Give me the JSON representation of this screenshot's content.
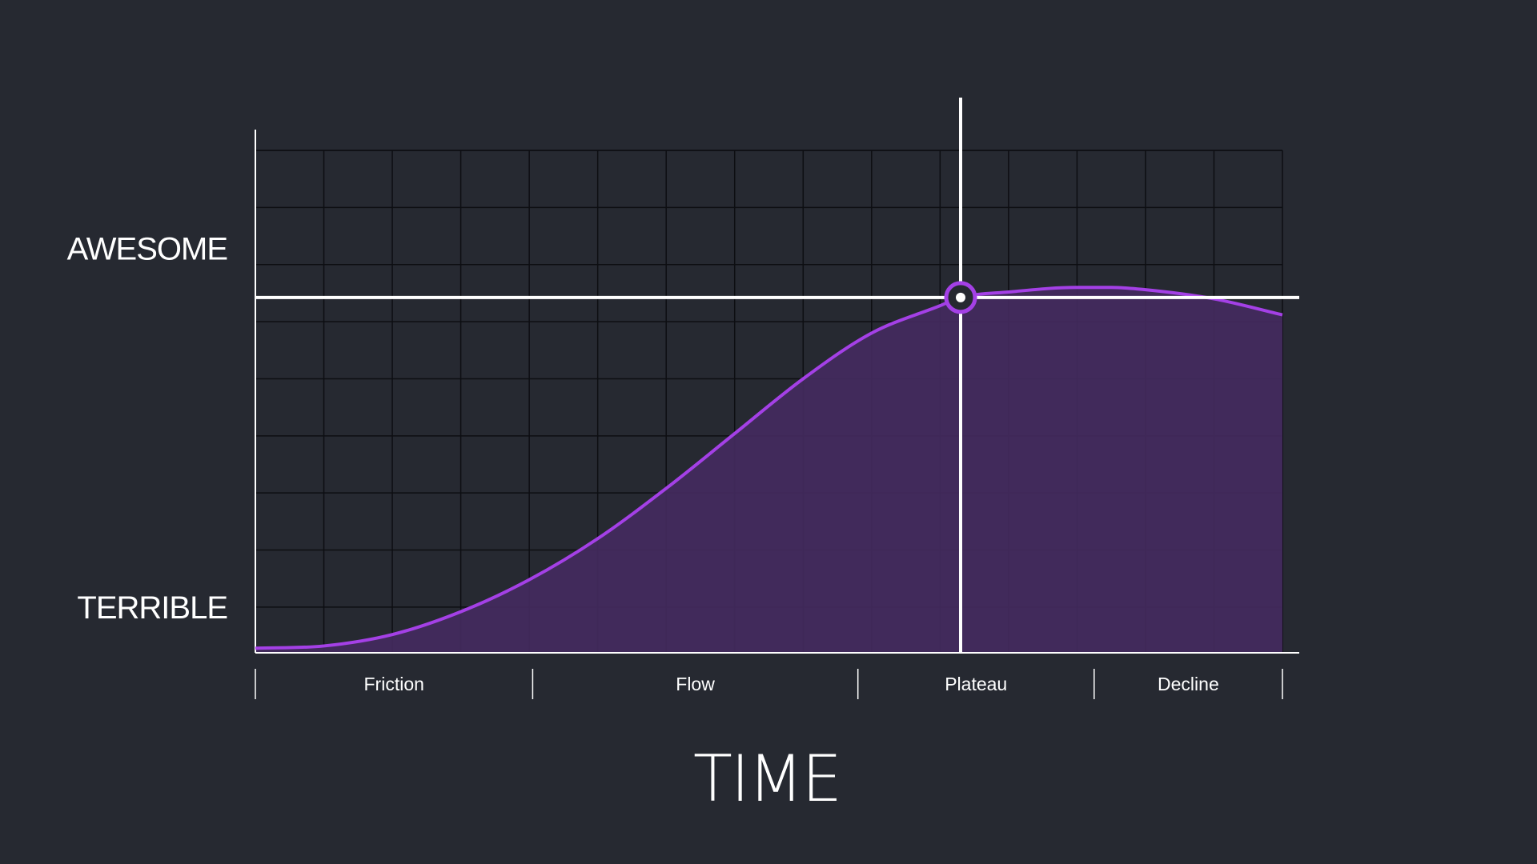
{
  "chart_data": {
    "type": "area",
    "title": "",
    "xlabel": "TIME",
    "ylabel": "",
    "y_labels": [
      {
        "text": "AWESOME",
        "value": 0.885
      },
      {
        "text": "TERRIBLE",
        "value": 0.1
      }
    ],
    "xlim": [
      0,
      15
    ],
    "ylim": [
      0,
      1.1
    ],
    "grid": true,
    "phases": [
      {
        "label": "Friction",
        "start": 0,
        "end": 4.05
      },
      {
        "label": "Flow",
        "start": 4.05,
        "end": 8.8
      },
      {
        "label": "Plateau",
        "start": 8.8,
        "end": 12.25
      },
      {
        "label": "Decline",
        "start": 12.25,
        "end": 15
      }
    ],
    "series": [
      {
        "x": [
          0,
          1,
          2,
          3,
          4,
          5,
          6,
          7,
          8,
          9,
          10,
          10.3,
          11,
          12,
          12.5,
          13,
          14,
          15
        ],
        "y": [
          0.01,
          0.015,
          0.04,
          0.09,
          0.16,
          0.25,
          0.36,
          0.48,
          0.6,
          0.7,
          0.76,
          0.778,
          0.79,
          0.8,
          0.8,
          0.795,
          0.775,
          0.74
        ]
      }
    ],
    "marker": {
      "x": 10.3,
      "y": 0.778
    },
    "colors": {
      "background": "#262931",
      "curve": "#a440e6",
      "fill": "#432a5e",
      "grid": "#0d0e12",
      "axis": "#ffffff",
      "crosshair": "#ffffff"
    }
  }
}
